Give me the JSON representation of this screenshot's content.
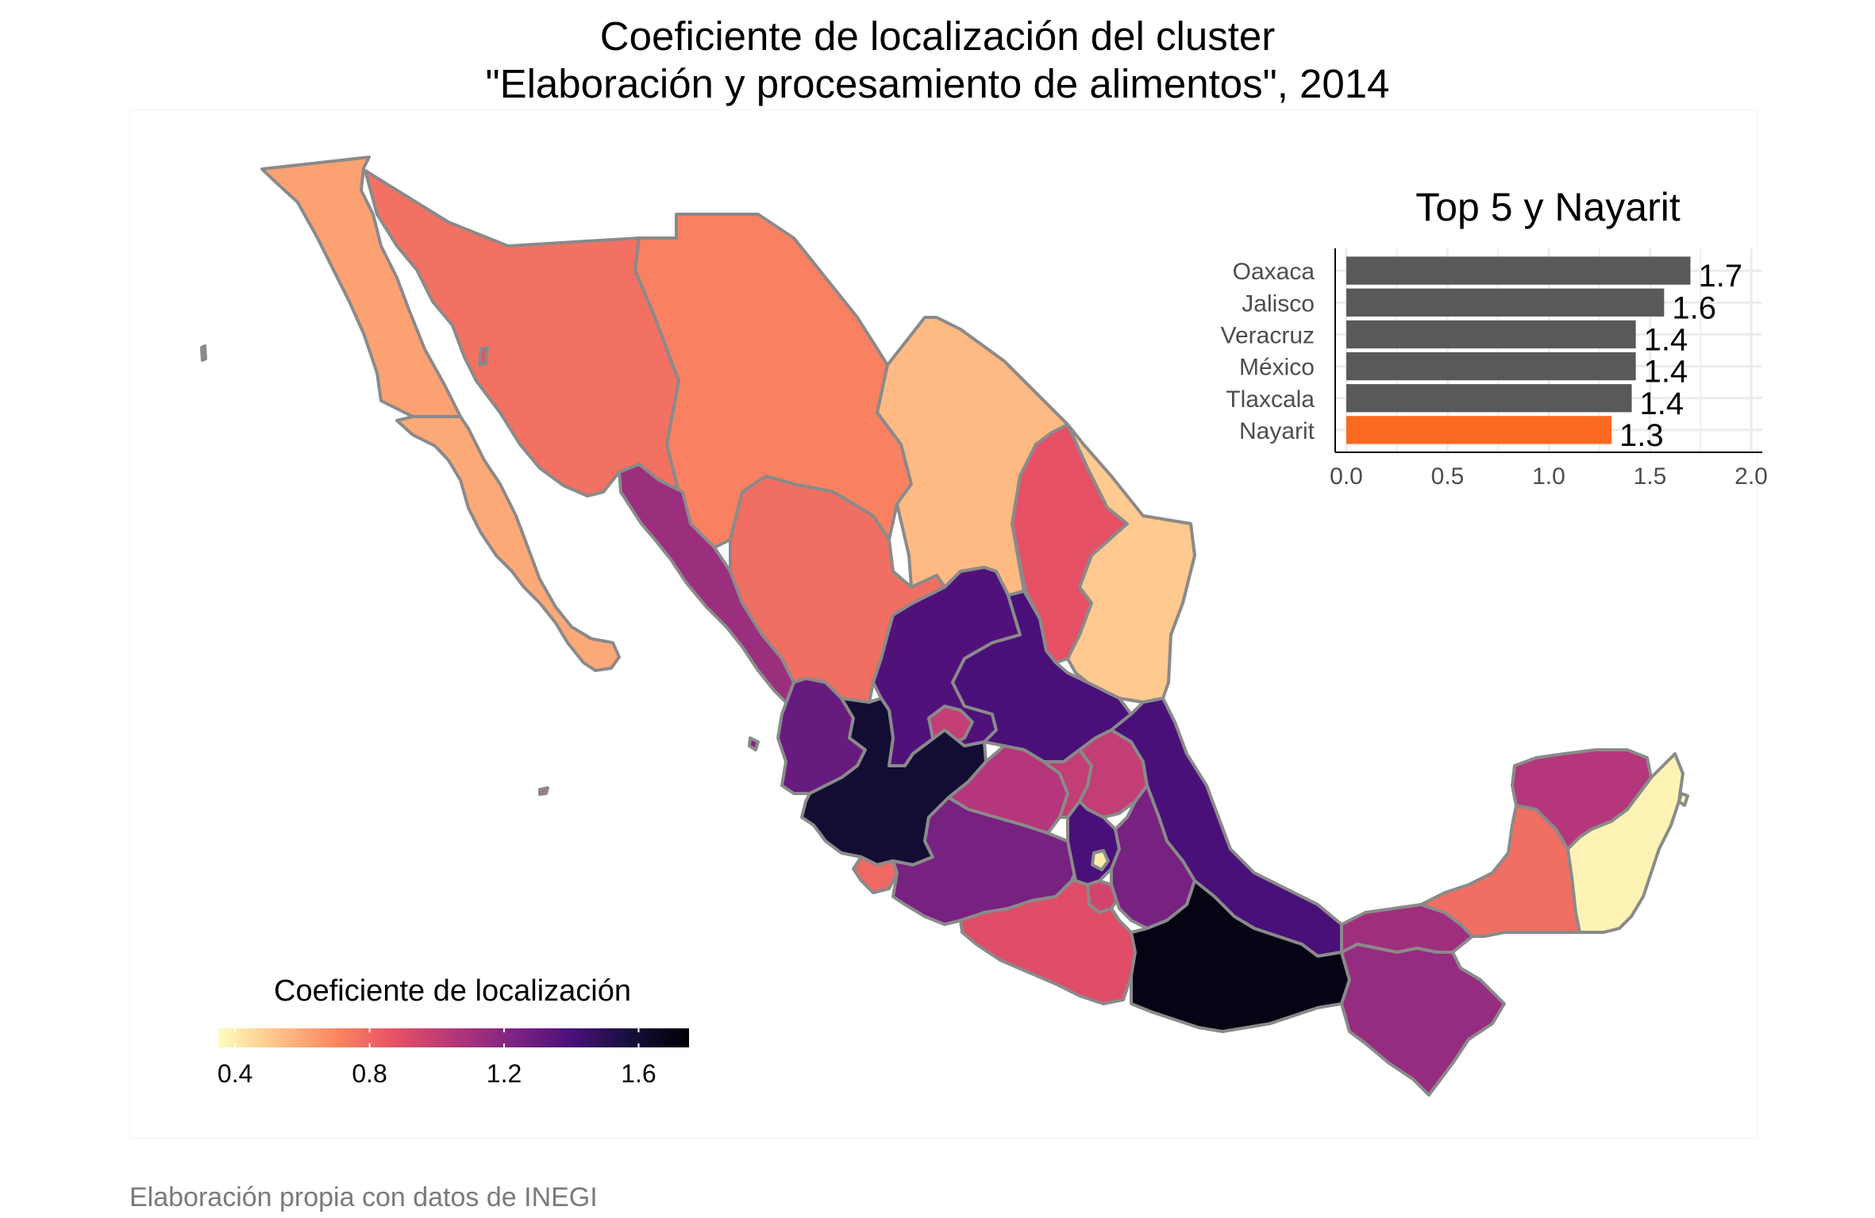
{
  "title_lines": [
    "Coeficiente de localización del cluster",
    "\"Elaboración y procesamiento de alimentos\", 2014"
  ],
  "caption": "Elaboración propia con datos de INEGI",
  "legend": {
    "title": "Coeficiente de localización",
    "ticks": [
      "0.4",
      "0.8",
      "1.2",
      "1.6"
    ],
    "tick_values": [
      0.4,
      0.8,
      1.2,
      1.6
    ],
    "range": [
      0.35,
      1.75
    ],
    "palette": [
      "#fcfdbf",
      "#fec287",
      "#fb8761",
      "#e65164",
      "#b5367a",
      "#7e2482",
      "#4a1079",
      "#160f3b",
      "#000004"
    ]
  },
  "map": {
    "states": [
      {
        "name": "Baja California",
        "value": 0.62
      },
      {
        "name": "Baja California Sur",
        "value": 0.6
      },
      {
        "name": "Sonora",
        "value": 0.77
      },
      {
        "name": "Chihuahua",
        "value": 0.72
      },
      {
        "name": "Coahuila",
        "value": 0.55
      },
      {
        "name": "Nuevo León",
        "value": 0.88
      },
      {
        "name": "Tamaulipas",
        "value": 0.5
      },
      {
        "name": "Sinaloa",
        "value": 1.13
      },
      {
        "name": "Durango",
        "value": 0.78
      },
      {
        "name": "Zacatecas",
        "value": 1.38
      },
      {
        "name": "San Luis Potosí",
        "value": 1.4
      },
      {
        "name": "Nayarit",
        "value": 1.3
      },
      {
        "name": "Aguascalientes",
        "value": 1.0
      },
      {
        "name": "Jalisco",
        "value": 1.6
      },
      {
        "name": "Colima",
        "value": 0.8
      },
      {
        "name": "Michoacán",
        "value": 1.25
      },
      {
        "name": "Guanajuato",
        "value": 1.05
      },
      {
        "name": "Querétaro",
        "value": 1.0
      },
      {
        "name": "Hidalgo",
        "value": 1.0
      },
      {
        "name": "Veracruz",
        "value": 1.4
      },
      {
        "name": "México",
        "value": 1.4
      },
      {
        "name": "Ciudad de México",
        "value": 0.4
      },
      {
        "name": "Morelos",
        "value": 0.95
      },
      {
        "name": "Tlaxcala",
        "value": 1.4
      },
      {
        "name": "Puebla",
        "value": 1.25
      },
      {
        "name": "Guerrero",
        "value": 0.9
      },
      {
        "name": "Oaxaca",
        "value": 1.7
      },
      {
        "name": "Tabasco",
        "value": 1.12
      },
      {
        "name": "Chiapas",
        "value": 1.15
      },
      {
        "name": "Campeche",
        "value": 0.78
      },
      {
        "name": "Yucatán",
        "value": 1.05
      },
      {
        "name": "Quintana Roo",
        "value": 0.38
      }
    ]
  },
  "inset": {
    "title": "Top 5 y Nayarit",
    "chart_data": {
      "type": "bar",
      "orientation": "horizontal",
      "title": "Top 5 y Nayarit",
      "categories": [
        "Oaxaca",
        "Jalisco",
        "Veracruz",
        "México",
        "Tlaxcala",
        "Nayarit"
      ],
      "values": [
        1.7,
        1.57,
        1.43,
        1.43,
        1.41,
        1.31
      ],
      "labels": [
        "1.7",
        "1.6",
        "1.4",
        "1.4",
        "1.4",
        "1.3"
      ],
      "colors": [
        "#595959",
        "#595959",
        "#595959",
        "#595959",
        "#595959",
        "#fc6921"
      ],
      "xlim": [
        0,
        2.0
      ],
      "xticks": [
        0.0,
        0.5,
        1.0,
        1.5,
        2.0
      ],
      "xtick_labels": [
        "0.0",
        "0.5",
        "1.0",
        "1.5",
        "2.0"
      ],
      "grid": true
    }
  }
}
